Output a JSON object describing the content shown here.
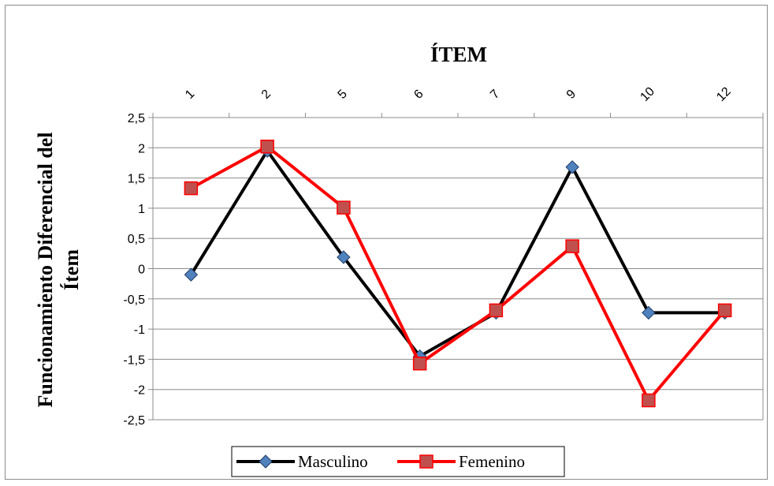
{
  "chart_data": {
    "type": "line",
    "title": "ÍTEM",
    "xlabel": "",
    "ylabel": "Funcionamiento Diferencial del Ítem",
    "ylabel_lines": [
      "Funcionamiento Diferencial del",
      "Ítem"
    ],
    "categories": [
      "1",
      "2",
      "5",
      "6",
      "7",
      "9",
      "10",
      "12"
    ],
    "ylim": [
      -2.5,
      2.5
    ],
    "yticks": [
      "-2,5",
      "-2",
      "-1,5",
      "-1",
      "-0,5",
      "0",
      "0,5",
      "1",
      "1,5",
      "2",
      "2,5"
    ],
    "ytick_values": [
      -2.5,
      -2,
      -1.5,
      -1,
      -0.5,
      0,
      0.5,
      1,
      1.5,
      2,
      2.5
    ],
    "grid": true,
    "x_axis_position": "top",
    "legend_position": "bottom",
    "series": [
      {
        "name": "Masculino",
        "values": [
          -0.1,
          1.95,
          0.19,
          -1.45,
          -0.73,
          1.68,
          -0.73,
          -0.73
        ],
        "color": "#000000",
        "marker": "diamond",
        "marker_color": "#4f81bd"
      },
      {
        "name": "Femenino",
        "values": [
          1.33,
          2.02,
          1.01,
          -1.57,
          -0.69,
          0.37,
          -2.18,
          -0.69
        ],
        "color": "#ff0000",
        "marker": "square",
        "marker_color": "#c0504d"
      }
    ]
  }
}
